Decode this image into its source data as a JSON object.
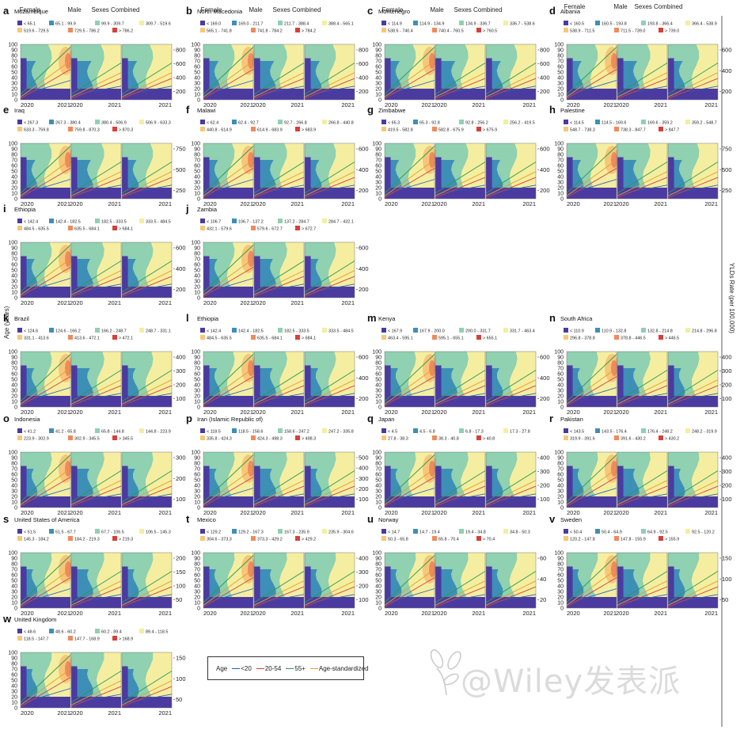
{
  "col_headers": [
    "Female",
    "Male",
    "Sexes Combined"
  ],
  "y_axis_label": "Age (years)",
  "right_axis_label": "YLDs Rate (per 100,000)",
  "x_ticks": [
    "2020",
    "2021"
  ],
  "y_ticks": [
    "0",
    "10",
    "20",
    "30",
    "40",
    "50",
    "60",
    "70",
    "80",
    "90",
    "100"
  ],
  "legend": {
    "title": "Age",
    "items": [
      {
        "label": "<20",
        "color": "#2b5fb0"
      },
      {
        "label": "20-54",
        "color": "#d6403a"
      },
      {
        "label": "55+",
        "color": "#2e9a4f"
      },
      {
        "label": "Age-standardized",
        "color": "#e2a02a"
      }
    ]
  },
  "watermark": "@Wiley发表派",
  "band_colors": [
    "#4b3aa0",
    "#3d8fb8",
    "#8fd1b0",
    "#f5eea0",
    "#f7c67a",
    "#ef8a5c",
    "#d6403a"
  ],
  "chart_data": [
    {
      "letter": "a",
      "country": "Mozambique",
      "breaks": [
        "< 65.1",
        "65.1 - 99.9",
        "99.9 - 309.7",
        "309.7 - 519.6",
        "519.6 - 729.5",
        "729.5 - 786.2",
        "> 786.2"
      ],
      "right_ticks": [
        "200",
        "400",
        "600",
        "800"
      ]
    },
    {
      "letter": "b",
      "country": "North Macedonia",
      "breaks": [
        "< 169.0",
        "169.0 - 211.7",
        "211.7 - 388.4",
        "388.4 - 565.1",
        "565.1 - 741.8",
        "741.8 - 784.2",
        "> 784.2"
      ],
      "right_ticks": [
        "200",
        "400",
        "600",
        "800"
      ]
    },
    {
      "letter": "c",
      "country": "Montenegro",
      "breaks": [
        "< 114.9",
        "114.9 - 134.9",
        "134.9 - 336.7",
        "336.7 - 538.6",
        "538.6 - 740.4",
        "740.4 - 760.5",
        "> 760.5"
      ],
      "right_ticks": [
        "200",
        "400",
        "600",
        "800"
      ]
    },
    {
      "letter": "d",
      "country": "Albania",
      "breaks": [
        "< 160.5",
        "160.5 - 193.8",
        "193.8 - 366.4",
        "366.4 - 538.9",
        "538.9 - 711.5",
        "711.5 - 739.0",
        "> 739.0"
      ],
      "right_ticks": [
        "200",
        "400",
        "600"
      ]
    },
    {
      "letter": "e",
      "country": "Iraq",
      "breaks": [
        "< 267.3",
        "267.3 - 380.4",
        "380.4 - 506.9",
        "506.9 - 633.3",
        "633.3 - 759.8",
        "759.8 - 870.3",
        "> 870.3"
      ],
      "right_ticks": [
        "250",
        "500",
        "750"
      ]
    },
    {
      "letter": "f",
      "country": "Malawi",
      "breaks": [
        "< 62.4",
        "62.4 - 92.7",
        "92.7 - 266.8",
        "266.8 - 440.8",
        "440.8 - 614.9",
        "614.9 - 683.9",
        "> 683.9"
      ],
      "right_ticks": [
        "200",
        "400",
        "600"
      ]
    },
    {
      "letter": "g",
      "country": "Zimbabwe",
      "breaks": [
        "< 65.3",
        "65.3 - 92.8",
        "92.8 - 256.2",
        "256.2 - 419.5",
        "419.5 - 582.8",
        "582.8 - 675.9",
        "> 675.9"
      ],
      "right_ticks": [
        "200",
        "400",
        "600"
      ]
    },
    {
      "letter": "h",
      "country": "Palestine",
      "breaks": [
        "< 114.5",
        "114.5 - 169.6",
        "169.6 - 359.2",
        "359.2 - 548.7",
        "548.7 - 738.3",
        "738.3 - 847.7",
        "> 847.7"
      ],
      "right_ticks": [
        "250",
        "500",
        "750"
      ]
    },
    {
      "letter": "i",
      "country": "Ethiopia",
      "breaks": [
        "< 142.4",
        "142.4 - 182.5",
        "182.5 - 333.5",
        "333.5 - 484.5",
        "484.5 - 635.5",
        "635.5 - 684.1",
        "> 684.1"
      ],
      "right_ticks": [
        "200",
        "400",
        "600"
      ]
    },
    {
      "letter": "j",
      "country": "Zambia",
      "breaks": [
        "< 106.7",
        "106.7 - 137.2",
        "137.2 - 284.7",
        "284.7 - 432.1",
        "432.1 - 579.6",
        "579.6 - 672.7",
        "> 672.7"
      ],
      "right_ticks": [
        "200",
        "400",
        "600"
      ]
    },
    {
      "letter": "k",
      "country": "Brazil",
      "breaks": [
        "< 124.6",
        "124.6 - 166.2",
        "166.2 - 248.7",
        "248.7 - 331.1",
        "331.1 - 413.6",
        "413.6 - 472.1",
        "> 472.1"
      ],
      "right_ticks": [
        "100",
        "200",
        "300",
        "400"
      ]
    },
    {
      "letter": "l",
      "country": "Ethiopia",
      "breaks": [
        "< 142.4",
        "142.4 - 182.5",
        "182.5 - 333.5",
        "333.5 - 484.5",
        "484.5 - 635.5",
        "635.5 - 684.1",
        "> 684.1"
      ],
      "right_ticks": [
        "200",
        "400",
        "600"
      ]
    },
    {
      "letter": "m",
      "country": "Kenya",
      "breaks": [
        "< 167.9",
        "167.9 - 200.0",
        "200.0 - 331.7",
        "331.7 - 463.4",
        "463.4 - 595.1",
        "595.1 - 655.1",
        "> 655.1"
      ],
      "right_ticks": [
        "200",
        "400",
        "600"
      ]
    },
    {
      "letter": "n",
      "country": "South Africa",
      "breaks": [
        "< 110.9",
        "110.9 - 132.8",
        "132.8 - 214.8",
        "214.8 - 296.8",
        "296.8 - 378.8",
        "378.8 - 446.5",
        "> 446.5"
      ],
      "right_ticks": [
        "100",
        "200",
        "300",
        "400"
      ]
    },
    {
      "letter": "o",
      "country": "Indonesia",
      "breaks": [
        "< 41.2",
        "41.2 - 65.8",
        "65.8 - 144.8",
        "144.8 - 223.9",
        "223.9 - 302.9",
        "302.9 - 345.5",
        "> 345.5"
      ],
      "right_ticks": [
        "100",
        "200",
        "300"
      ]
    },
    {
      "letter": "p",
      "country": "Iran (Islamic Republic of)",
      "breaks": [
        "< 118.5",
        "118.5 - 158.6",
        "158.6 - 247.2",
        "247.2 - 335.8",
        "335.8 - 424.3",
        "424.3 - 498.3",
        "> 498.3"
      ],
      "right_ticks": [
        "100",
        "200",
        "300",
        "400",
        "500"
      ]
    },
    {
      "letter": "q",
      "country": "Japan",
      "breaks": [
        "< 4.5",
        "4.5 - 6.8",
        "6.8 - 17.3",
        "17.3 - 27.8",
        "27.8 - 38.3",
        "38.3 - 40.8",
        "> 40.8"
      ],
      "right_ticks": [
        "100",
        "200",
        "300",
        "400"
      ]
    },
    {
      "letter": "r",
      "country": "Pakistan",
      "breaks": [
        "< 143.5",
        "143.5 - 176.4",
        "176.4 - 248.2",
        "248.2 - 319.9",
        "319.9 - 391.6",
        "391.6 - 430.2",
        "> 430.2"
      ],
      "right_ticks": [
        "100",
        "200",
        "300",
        "400"
      ]
    },
    {
      "letter": "s",
      "country": "United States of America",
      "breaks": [
        "< 51.5",
        "51.5 - 67.7",
        "67.7 - 106.5",
        "106.5 - 145.3",
        "145.3 - 184.2",
        "184.2 - 219.3",
        "> 219.3"
      ],
      "right_ticks": [
        "50",
        "100",
        "150",
        "200"
      ]
    },
    {
      "letter": "t",
      "country": "Mexico",
      "breaks": [
        "< 129.2",
        "129.2 - 167.3",
        "167.3 - 235.9",
        "235.9 - 304.6",
        "304.6 - 373.3",
        "373.3 - 429.2",
        "> 429.2"
      ],
      "right_ticks": [
        "100",
        "200",
        "300",
        "400"
      ]
    },
    {
      "letter": "u",
      "country": "Norway",
      "breaks": [
        "< 14.7",
        "14.7 - 19.4",
        "19.4 - 34.8",
        "34.8 - 50.3",
        "50.3 - 65.8",
        "65.8 - 70.4",
        "> 70.4"
      ],
      "right_ticks": [
        "20",
        "40",
        "60"
      ]
    },
    {
      "letter": "v",
      "country": "Sweden",
      "breaks": [
        "< 50.4",
        "50.4 - 64.9",
        "64.9 - 92.5",
        "92.5 - 120.2",
        "120.2 - 147.8",
        "147.8 - 155.9",
        "> 155.9"
      ],
      "right_ticks": [
        "50",
        "100",
        "150"
      ]
    },
    {
      "letter": "w",
      "country": "United Kingdom",
      "breaks": [
        "< 48.6",
        "48.6 - 60.2",
        "60.2 - 89.4",
        "89.4 - 118.5",
        "118.5 - 147.7",
        "147.7 - 168.9",
        "> 168.9"
      ],
      "right_ticks": [
        "50",
        "100",
        "150"
      ]
    }
  ]
}
